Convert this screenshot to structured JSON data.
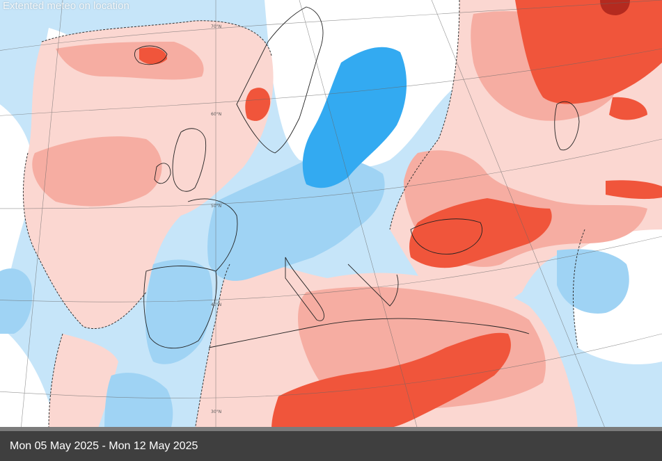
{
  "overlay": {
    "watermark": "Extented meteo",
    "link_text": "on location"
  },
  "map": {
    "latitude_labels": [
      "70°N",
      "60°N",
      "50°N",
      "40°N",
      "30°N"
    ],
    "colors": {
      "sea_blue": "#c6e5f9",
      "sea_pale": "#e2f2fc",
      "warm_light": "#fbd7d1",
      "warm_mid": "#f6ada2",
      "warm_strong": "#f0553b",
      "warm_darkest": "#b42a1f",
      "cool_mid": "#9fd3f4",
      "cool_strong": "#33aaf1"
    }
  },
  "footer": {
    "date_range": "Mon 05 May 2025 - Mon 12 May 2025"
  }
}
